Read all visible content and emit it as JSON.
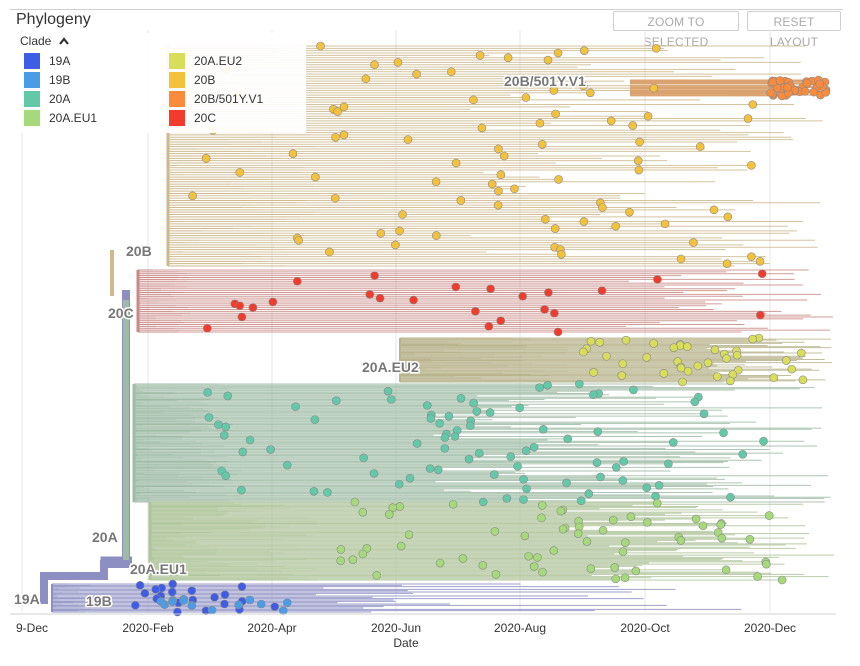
{
  "panel": {
    "title": "Phylogeny",
    "zoom_label": "ZOOM TO SELECTED",
    "reset_label": "RESET LAYOUT"
  },
  "legend": {
    "title": "Clade",
    "toggle_icon": "chevron-up-icon",
    "items": [
      {
        "label": "19A",
        "color": "#3f5ce6"
      },
      {
        "label": "19B",
        "color": "#4a9ce6"
      },
      {
        "label": "20A",
        "color": "#62c9a8"
      },
      {
        "label": "20A.EU1",
        "color": "#a6d97a"
      },
      {
        "label": "20A.EU2",
        "color": "#d8dd5a"
      },
      {
        "label": "20B",
        "color": "#f4c13b"
      },
      {
        "label": "20B/501Y.V1",
        "color": "#fa8a3c"
      },
      {
        "label": "20C",
        "color": "#f13b2c"
      }
    ]
  },
  "axis": {
    "xlabel": "Date",
    "ticks": [
      "9-Dec",
      "2020-Feb",
      "2020-Apr",
      "2020-Jun",
      "2020-Aug",
      "2020-Oct",
      "2020-Dec"
    ]
  },
  "branch_labels": [
    "19A",
    "19B",
    "20A",
    "20A.EU1",
    "20A.EU2",
    "20B",
    "20C",
    "20B/501Y.V1"
  ],
  "colors": {
    "trunk": "#8d8fc2",
    "branch_20a": "#9fbba6",
    "branch_20b": "#cdb98d",
    "branch_20c": "#c98a86",
    "branch_eu2": "#b9b48e",
    "branch_eu1": "#aec49a",
    "grid": "#e6e6e6"
  }
}
